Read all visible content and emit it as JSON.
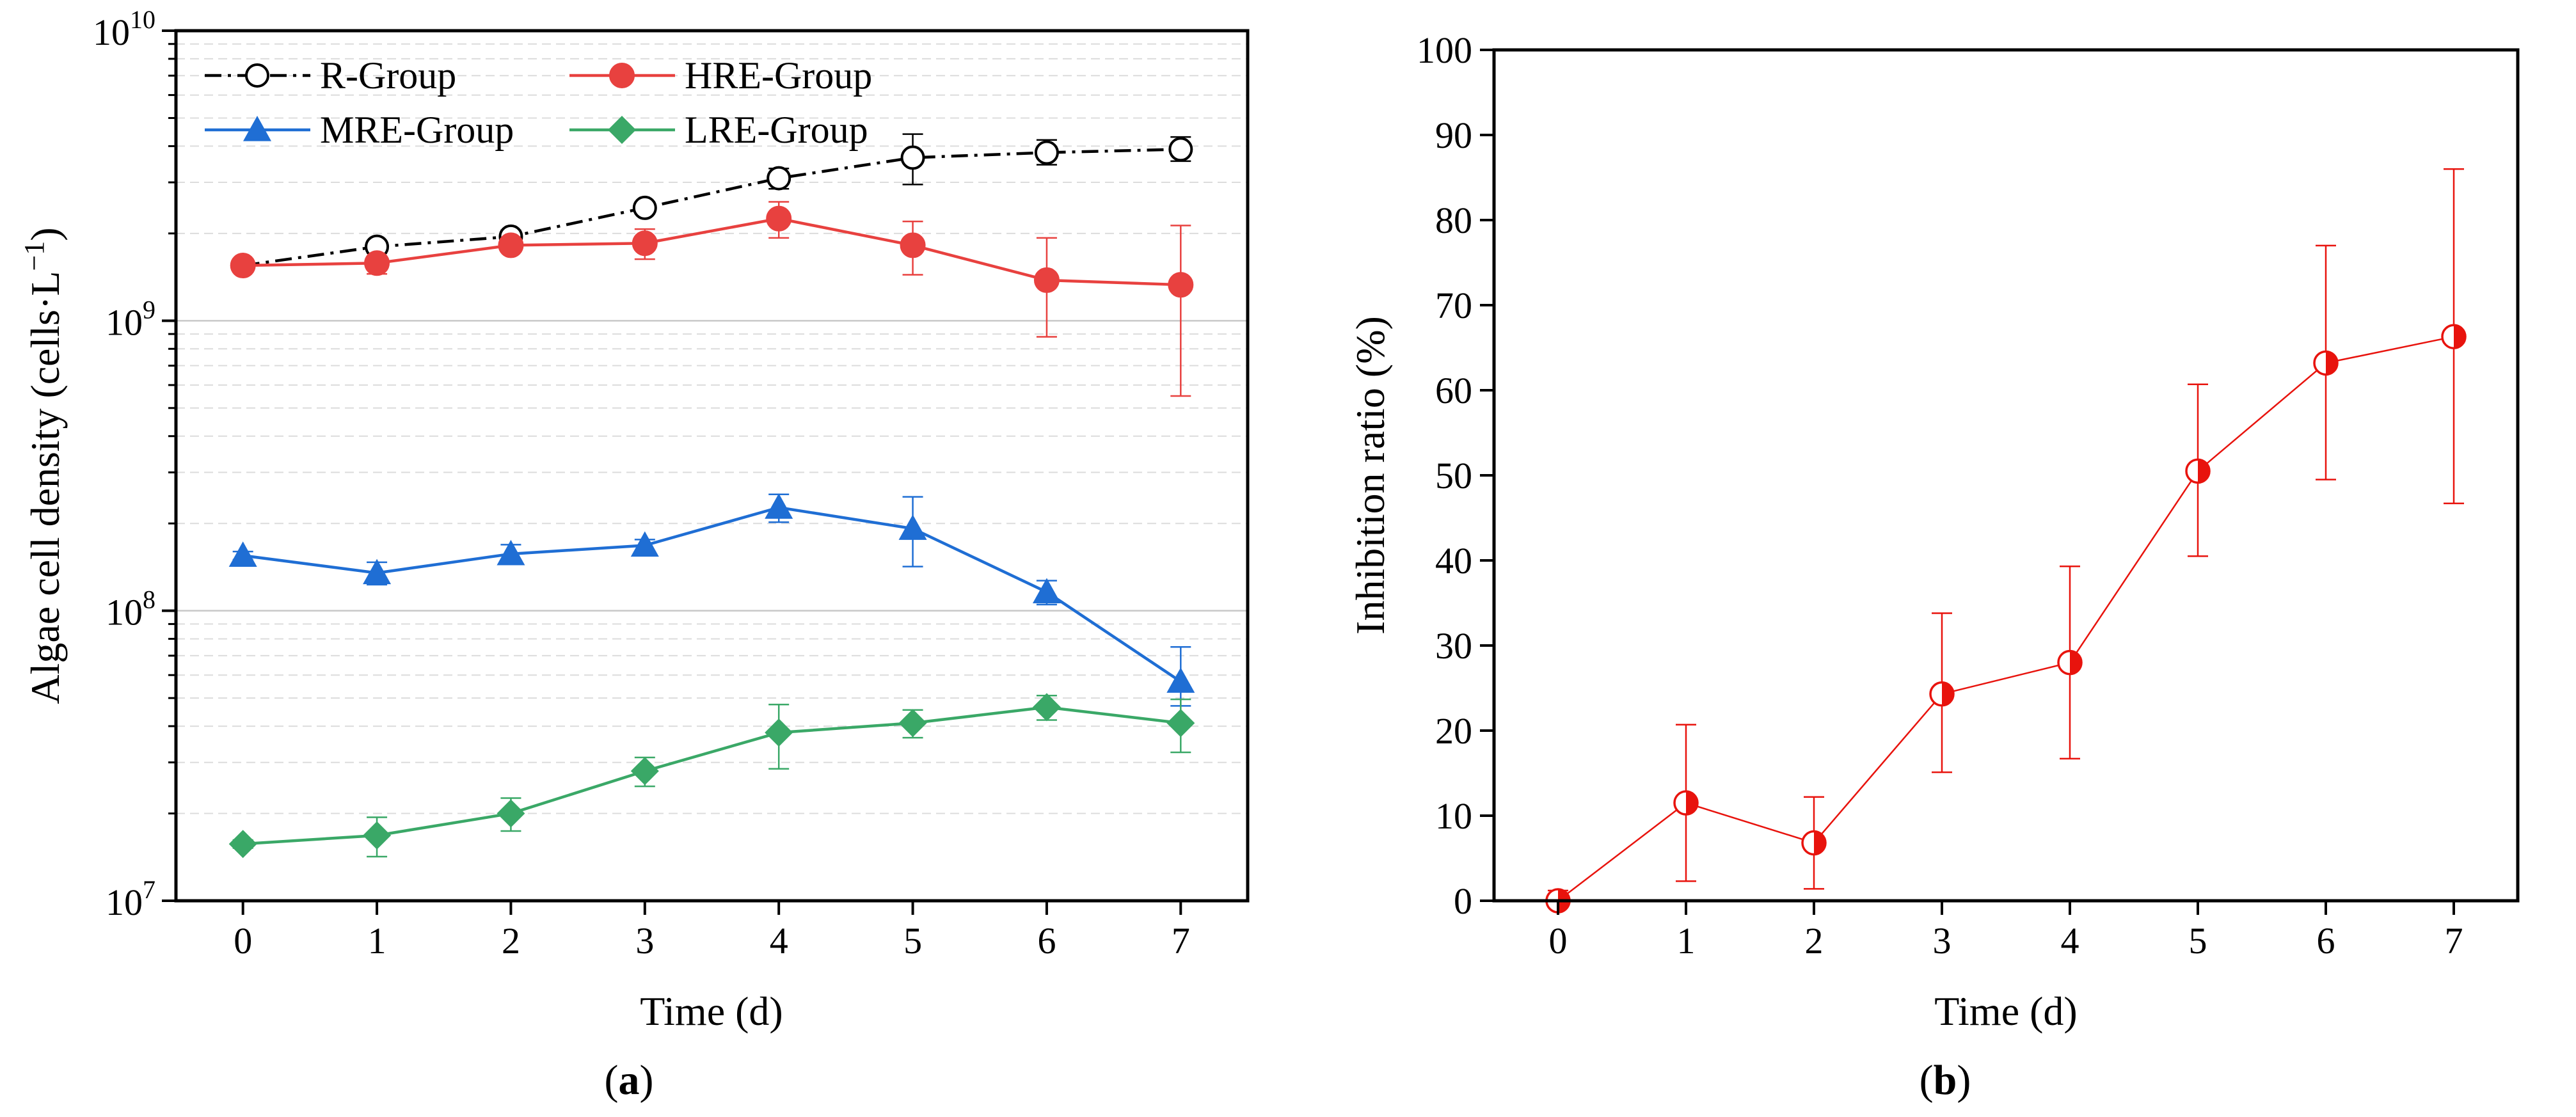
{
  "chart_data": [
    {
      "panel_label": "a",
      "type": "line",
      "xlabel": "Time (d)",
      "ylabel": "Algae cell density (cells·L",
      "ylabel_superscript": "−1",
      "ylabel_suffix": ")",
      "yscale": "log",
      "xlim": [
        -0.5,
        7.5
      ],
      "ylim": [
        10000000,
        10000000000
      ],
      "x": [
        0,
        1,
        2,
        3,
        4,
        5,
        6,
        7
      ],
      "xticks": [
        "0",
        "1",
        "2",
        "3",
        "4",
        "5",
        "6",
        "7"
      ],
      "yticks": [
        {
          "value": 10000000,
          "base": "10",
          "exp": "7"
        },
        {
          "value": 100000000,
          "base": "10",
          "exp": "8"
        },
        {
          "value": 1000000000,
          "base": "10",
          "exp": "9"
        },
        {
          "value": 10000000000,
          "base": "10",
          "exp": "10"
        }
      ],
      "grid": "horizontal major and minor",
      "legend_position": "top-left, two columns",
      "series": [
        {
          "name": "R-Group",
          "color": "#000000",
          "line_style": "dash-dot",
          "marker": "open-circle",
          "values": [
            1550000000.0,
            1800000000.0,
            1950000000.0,
            2450000000.0,
            3100000000.0,
            3650000000.0,
            3800000000.0,
            3900000000.0
          ],
          "err_low": [
            40000000.0,
            60000000.0,
            100000000.0,
            80000000.0,
            250000000.0,
            700000000.0,
            350000000.0,
            350000000.0
          ],
          "err_high": [
            40000000.0,
            60000000.0,
            100000000.0,
            80000000.0,
            250000000.0,
            750000000.0,
            400000000.0,
            400000000.0
          ]
        },
        {
          "name": "HRE-Group",
          "color": "#e8413f",
          "line_style": "solid",
          "marker": "filled-circle",
          "values": [
            1550000000.0,
            1580000000.0,
            1820000000.0,
            1850000000.0,
            2250000000.0,
            1820000000.0,
            1380000000.0,
            1330000000.0
          ],
          "err_low": [
            40000000.0,
            130000000.0,
            80000000.0,
            220000000.0,
            320000000.0,
            380000000.0,
            500000000.0,
            780000000.0
          ],
          "err_high": [
            40000000.0,
            130000000.0,
            80000000.0,
            220000000.0,
            320000000.0,
            380000000.0,
            550000000.0,
            800000000.0
          ]
        },
        {
          "name": "MRE-Group",
          "color": "#1f6ed4",
          "line_style": "solid",
          "marker": "filled-triangle",
          "values": [
            155000000.0,
            135000000.0,
            157000000.0,
            168000000.0,
            227000000.0,
            192000000.0,
            116000000.0,
            57000000.0
          ],
          "err_low": [
            5000000.0,
            12000000.0,
            12000000.0,
            8000000.0,
            25000000.0,
            50000000.0,
            11000000.0,
            10000000.0
          ],
          "err_high": [
            5000000.0,
            12000000.0,
            12000000.0,
            8000000.0,
            25000000.0,
            55000000.0,
            11000000.0,
            18000000.0
          ]
        },
        {
          "name": "LRE-Group",
          "color": "#3aa867",
          "line_style": "solid",
          "marker": "filled-diamond",
          "values": [
            15700000.0,
            16800000.0,
            20000000.0,
            28000000.0,
            38000000.0,
            41000000.0,
            46500000.0,
            41000000.0
          ],
          "err_low": [
            500000.0,
            2600000.0,
            2600000.0,
            3200000.0,
            9500000.0,
            4500000.0,
            4500000.0,
            8500000.0
          ],
          "err_high": [
            500000.0,
            2600000.0,
            2600000.0,
            3200000.0,
            9500000.0,
            4500000.0,
            4500000.0,
            8500000.0
          ]
        }
      ]
    },
    {
      "panel_label": "b",
      "type": "line",
      "xlabel": "Time (d)",
      "ylabel": "Inhibition ratio (%)",
      "xlim": [
        -0.5,
        7.5
      ],
      "ylim": [
        0,
        100
      ],
      "x": [
        0,
        1,
        2,
        3,
        4,
        5,
        6,
        7
      ],
      "xticks": [
        "0",
        "1",
        "2",
        "3",
        "4",
        "5",
        "6",
        "7"
      ],
      "yticks": [
        "0",
        "10",
        "20",
        "30",
        "40",
        "50",
        "60",
        "70",
        "80",
        "90",
        "100"
      ],
      "grid": "none",
      "series": [
        {
          "color": "#e8130d",
          "line_style": "solid",
          "marker": "half-filled-circle",
          "values": [
            0,
            11.5,
            6.8,
            24.3,
            28,
            50.5,
            63.2,
            66.3
          ],
          "err_low": [
            1.2,
            9.2,
            5.4,
            9.2,
            11.3,
            10,
            13.7,
            19.6
          ],
          "err_high": [
            1.2,
            9.2,
            5.4,
            9.5,
            11.3,
            10.2,
            13.8,
            19.7
          ]
        }
      ]
    }
  ]
}
